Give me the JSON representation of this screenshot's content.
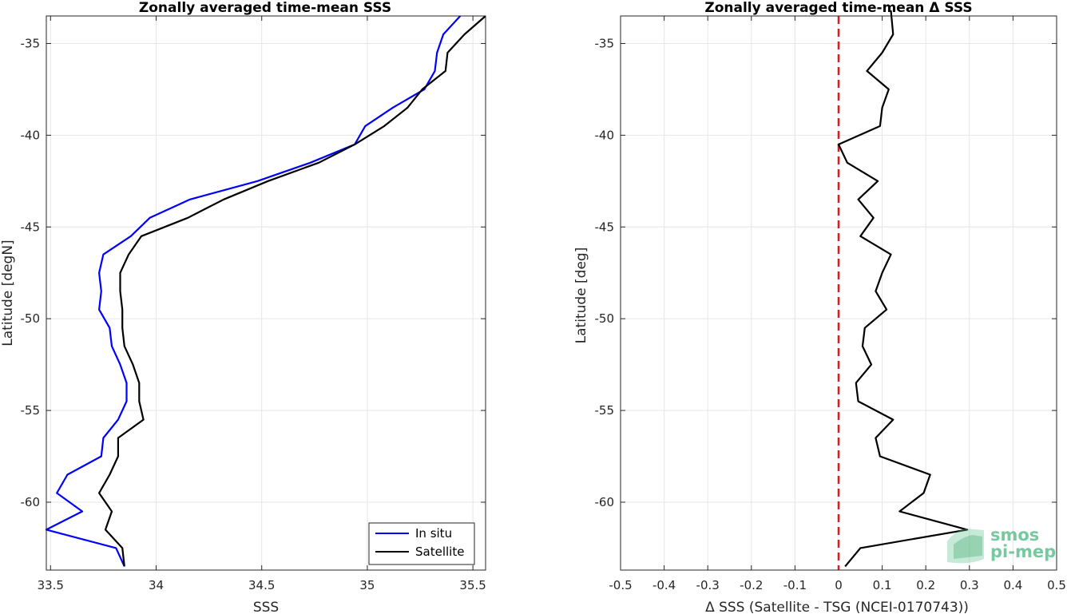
{
  "chart_data": [
    {
      "type": "line",
      "title": "Zonally averaged time-mean SSS",
      "xlabel": "SSS",
      "ylabel": "Latitude [degN]",
      "xlim": [
        33.48,
        35.56
      ],
      "ylim": [
        -63.7,
        -33.5
      ],
      "xticks": [
        33.5,
        34,
        34.5,
        35,
        35.5
      ],
      "xtick_labels": [
        "33.5",
        "34",
        "34.5",
        "35",
        "35.5"
      ],
      "yticks": [
        -35,
        -40,
        -45,
        -50,
        -55,
        -60
      ],
      "ytick_labels": [
        "-35",
        "-40",
        "-45",
        "-50",
        "-55",
        "-60"
      ],
      "grid": true,
      "legend": "bottom-right",
      "series": [
        {
          "name": "In situ",
          "color": "#0000ff",
          "x": [
            35.44,
            35.36,
            35.33,
            35.32,
            35.27,
            35.12,
            34.99,
            34.94,
            34.73,
            34.48,
            34.16,
            33.97,
            33.88,
            33.75,
            33.73,
            33.74,
            33.73,
            33.78,
            33.79,
            33.83,
            33.86,
            33.86,
            33.82,
            33.75,
            33.74,
            33.58,
            33.53,
            33.65,
            33.48,
            33.81,
            33.85
          ],
          "y": [
            -33.5,
            -34.5,
            -35.5,
            -36.5,
            -37.5,
            -38.5,
            -39.5,
            -40.5,
            -41.5,
            -42.5,
            -43.5,
            -44.5,
            -45.5,
            -46.5,
            -47.5,
            -48.5,
            -49.5,
            -50.5,
            -51.5,
            -52.5,
            -53.5,
            -54.5,
            -55.5,
            -56.5,
            -57.5,
            -58.5,
            -59.5,
            -60.5,
            -61.5,
            -62.5,
            -63.5
          ]
        },
        {
          "name": "Satellite",
          "color": "#000000",
          "x": [
            35.56,
            35.46,
            35.38,
            35.37,
            35.26,
            35.19,
            35.08,
            34.94,
            34.77,
            34.53,
            34.32,
            34.15,
            33.93,
            33.87,
            33.83,
            33.83,
            33.84,
            33.84,
            33.85,
            33.89,
            33.92,
            33.92,
            33.94,
            33.82,
            33.82,
            33.78,
            33.73,
            33.79,
            33.76,
            33.84,
            33.85
          ],
          "y": [
            -33.5,
            -34.5,
            -35.5,
            -36.5,
            -37.5,
            -38.5,
            -39.5,
            -40.5,
            -41.5,
            -42.5,
            -43.5,
            -44.5,
            -45.5,
            -46.5,
            -47.5,
            -48.5,
            -49.5,
            -50.5,
            -51.5,
            -52.5,
            -53.5,
            -54.5,
            -55.5,
            -56.5,
            -57.5,
            -58.5,
            -59.5,
            -60.5,
            -61.5,
            -62.5,
            -63.5
          ]
        }
      ]
    },
    {
      "type": "line",
      "title": "Zonally averaged time-mean Δ SSS",
      "xlabel": "Δ SSS (Satellite - TSG (NCEI-0170743))",
      "ylabel": "Latitude [deg]",
      "xlim": [
        -0.5,
        0.5
      ],
      "ylim": [
        -63.7,
        -33.5
      ],
      "xticks": [
        -0.5,
        -0.4,
        -0.3,
        -0.2,
        -0.1,
        0,
        0.1,
        0.2,
        0.3,
        0.4,
        0.5
      ],
      "xtick_labels": [
        "-0.5",
        "-0.4",
        "-0.3",
        "-0.2",
        "-0.1",
        "0",
        "0.1",
        "0.2",
        "0.3",
        "0.4",
        "0.5"
      ],
      "yticks": [
        -35,
        -40,
        -45,
        -50,
        -55,
        -60
      ],
      "ytick_labels": [
        "-35",
        "-40",
        "-45",
        "-50",
        "-55",
        "-60"
      ],
      "grid": true,
      "reference_line": {
        "x": 0,
        "color": "#e31a1c",
        "style": "dashed"
      },
      "series": [
        {
          "color": "#000000",
          "x": [
            0.12,
            0.125,
            0.1,
            0.065,
            0.115,
            0.1,
            0.095,
            0.0,
            0.02,
            0.09,
            0.045,
            0.08,
            0.05,
            0.12,
            0.1,
            0.085,
            0.11,
            0.06,
            0.055,
            0.075,
            0.04,
            0.045,
            0.125,
            0.085,
            0.095,
            0.21,
            0.195,
            0.14,
            0.295,
            0.05,
            0.015
          ],
          "y": [
            -33.2,
            -34.5,
            -35.5,
            -36.5,
            -37.5,
            -38.5,
            -39.5,
            -40.5,
            -41.5,
            -42.5,
            -43.5,
            -44.5,
            -45.5,
            -46.5,
            -47.5,
            -48.5,
            -49.5,
            -50.5,
            -51.5,
            -52.5,
            -53.5,
            -54.5,
            -55.5,
            -56.5,
            -57.5,
            -58.5,
            -59.5,
            -60.5,
            -61.5,
            -62.5,
            -63.5
          ]
        }
      ]
    }
  ],
  "watermark": {
    "line1": "smos",
    "line2": "pi-mep",
    "color": "#5fc08e"
  }
}
